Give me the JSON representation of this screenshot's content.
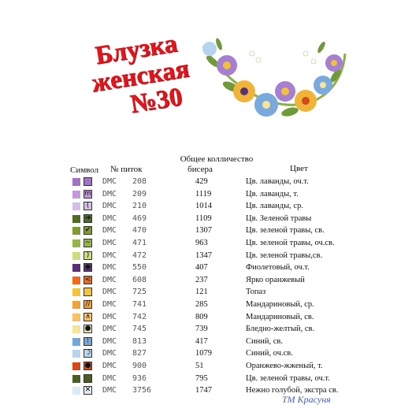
{
  "title": {
    "line1": "Блузка",
    "line2": "женская",
    "line3": "№30"
  },
  "headers": {
    "symbol": "Символ",
    "skeins": "№ питок",
    "total_line1": "Общее колличество",
    "total_line2": "бисера",
    "color": "Цвет"
  },
  "rows": [
    {
      "swatch": "#a371c8",
      "glyph": "",
      "brand": "DMC",
      "number": "208",
      "count": "429",
      "name": "Цв. лаванды, оч.т."
    },
    {
      "swatch": "#c29ad9",
      "glyph": "m",
      "brand": "DMC",
      "number": "209",
      "count": "1119",
      "name": "Цв. лаванды, т."
    },
    {
      "swatch": "#d6bfe7",
      "glyph": "(",
      "brand": "DMC",
      "number": "210",
      "count": "1014",
      "name": "Цв. лаванды, ср."
    },
    {
      "swatch": "#4f6b24",
      "glyph": "➔",
      "brand": "DMC",
      "number": "469",
      "count": "1109",
      "name": "Цв. Зеленой травы"
    },
    {
      "swatch": "#7f9b31",
      "glyph": "✔",
      "brand": "DMC",
      "number": "470",
      "count": "1307",
      "name": "Цв. зеленой травы, св."
    },
    {
      "swatch": "#95b54a",
      "glyph": "~",
      "brand": "DMC",
      "number": "471",
      "count": "963",
      "name": "Цв. зеленой травы, оч.св."
    },
    {
      "swatch": "#cbdd7f",
      "glyph": ")",
      "brand": "DMC",
      "number": "472",
      "count": "1347",
      "name": "Цв. зеленой травы,св."
    },
    {
      "swatch": "#5a2f77",
      "glyph": "◆",
      "brand": "DMC",
      "number": "550",
      "count": "407",
      "name": "Фиолетовый, оч.т."
    },
    {
      "swatch": "#ee6a19",
      "glyph": "<",
      "brand": "DMC",
      "number": "608",
      "count": "237",
      "name": "Ярко оранжевый"
    },
    {
      "swatch": "#f5c33a",
      "glyph": "",
      "brand": "DMC",
      "number": "725",
      "count": "121",
      "name": "Топаз"
    },
    {
      "swatch": "#f3a13a",
      "glyph": "//",
      "brand": "DMC",
      "number": "741",
      "count": "285",
      "name": "Мандариновый, ср."
    },
    {
      "swatch": "#f8c161",
      "glyph": "∧",
      "brand": "DMC",
      "number": "742",
      "count": "809",
      "name": "Мандариновый, св."
    },
    {
      "swatch": "#f4e59a",
      "glyph": "●",
      "brand": "DMC",
      "number": "745",
      "count": "739",
      "name": "Бледно-желтый, св."
    },
    {
      "swatch": "#74a7d8",
      "glyph": "⁝",
      "brand": "DMC",
      "number": "813",
      "count": "417",
      "name": "Синий, св."
    },
    {
      "swatch": "#b6d4ec",
      "glyph": "☽",
      "brand": "DMC",
      "number": "827",
      "count": "1079",
      "name": "Синий, оч.св."
    },
    {
      "swatch": "#d14a17",
      "glyph": "●",
      "brand": "DMC",
      "number": "900",
      "count": "51",
      "name": "Оранжево-жженый, т."
    },
    {
      "swatch": "#4b5d25",
      "glyph": "",
      "brand": "DMC",
      "number": "936",
      "count": "795",
      "name": "Цв. зеленой травы, оч.т."
    },
    {
      "swatch": "#d9ecf2",
      "glyph": "✕",
      "brand": "DMC",
      "number": "3756",
      "count": "1747",
      "name": "Нежно голубой, экстра св."
    }
  ],
  "signature": "ТМ Красуня"
}
